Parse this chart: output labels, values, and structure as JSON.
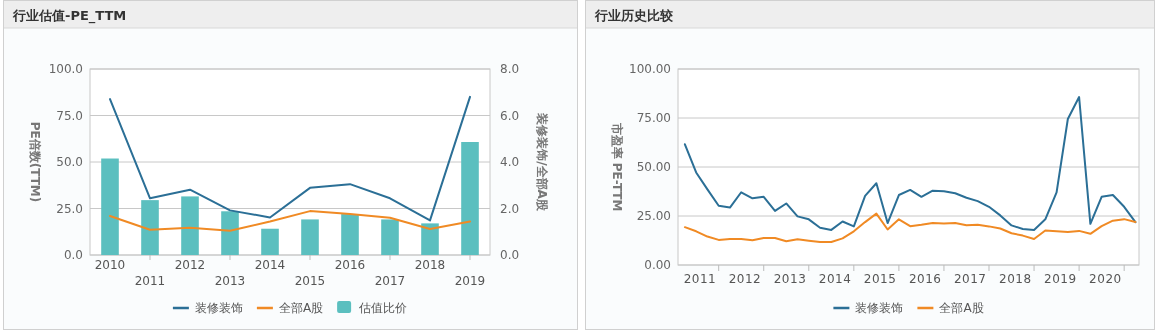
{
  "chart_data": [
    {
      "type": "bar",
      "title": "行业估值-PE_TTM",
      "ylabel": "PE倍数(TTM)",
      "y2label": "装修装饰/全部A股",
      "categories": [
        "2010",
        "2011",
        "2012",
        "2013",
        "2014",
        "2015",
        "2016",
        "2017",
        "2018",
        "2019"
      ],
      "series": [
        {
          "name": "装修装饰",
          "type": "line",
          "color": "#2b6f96",
          "values": [
            83.8,
            30.5,
            35.1,
            24.0,
            20.2,
            36.1,
            38.1,
            30.5,
            18.6,
            85.0
          ]
        },
        {
          "name": "全部A股",
          "type": "line",
          "color": "#f08a24",
          "values": [
            21.0,
            13.6,
            14.6,
            13.0,
            18.0,
            23.6,
            22.0,
            20.0,
            14.0,
            18.0
          ]
        },
        {
          "name": "估值比价",
          "axis": "y2",
          "color": "#5bbfbf",
          "values": [
            4.15,
            2.36,
            2.52,
            1.88,
            1.13,
            1.53,
            1.76,
            1.53,
            1.36,
            4.86
          ]
        }
      ],
      "ylim": [
        0,
        100
      ],
      "yticks": [
        {
          "value": 0,
          "label": "0.0"
        },
        {
          "value": 25,
          "label": "25.0"
        },
        {
          "value": 50,
          "label": "50.0"
        },
        {
          "value": 75,
          "label": "75.0"
        },
        {
          "value": 100,
          "label": "100.0"
        }
      ],
      "y2lim": [
        0,
        8
      ],
      "y2ticks": [
        {
          "value": 0,
          "label": "0.0"
        },
        {
          "value": 2,
          "label": "2.0"
        },
        {
          "value": 4,
          "label": "4.0"
        },
        {
          "value": 6,
          "label": "6.0"
        },
        {
          "value": 8,
          "label": "8.0"
        }
      ],
      "grid": "y",
      "legend": "bottom"
    },
    {
      "type": "line",
      "title": "行业历史比较",
      "ylabel": "市盈率 PE-TTM",
      "x": [
        "2011-04",
        "2011-07",
        "2011-10",
        "2012-01",
        "2012-04",
        "2012-07",
        "2012-10",
        "2013-01",
        "2013-04",
        "2013-07",
        "2013-10",
        "2014-01",
        "2014-04",
        "2014-07",
        "2014-10",
        "2015-01",
        "2015-04",
        "2015-07",
        "2015-10",
        "2016-01",
        "2016-04",
        "2016-07",
        "2016-10",
        "2017-01",
        "2017-04",
        "2017-07",
        "2017-10",
        "2018-01",
        "2018-04",
        "2018-07",
        "2018-10",
        "2019-01",
        "2019-04",
        "2019-07",
        "2019-10",
        "2020-01",
        "2020-04",
        "2020-07",
        "2020-10",
        "2021-01",
        "2021-04"
      ],
      "series": [
        {
          "name": "装修装饰",
          "color": "#2b6f96",
          "values": [
            61.6,
            47.2,
            38.6,
            30.2,
            29.3,
            37.1,
            34.0,
            34.8,
            27.6,
            31.4,
            24.8,
            23.3,
            19.0,
            17.9,
            22.2,
            19.7,
            35.3,
            41.7,
            21.4,
            35.7,
            38.3,
            34.8,
            37.9,
            37.6,
            36.6,
            34.3,
            32.6,
            29.7,
            25.3,
            20.2,
            18.4,
            17.9,
            23.3,
            37.1,
            74.5,
            85.7,
            21.0,
            34.8,
            35.7,
            29.7,
            21.9
          ]
        },
        {
          "name": "全部A股",
          "color": "#f08a24",
          "values": [
            19.3,
            17.2,
            14.5,
            12.8,
            13.3,
            13.3,
            12.6,
            13.8,
            13.8,
            12.1,
            13.1,
            12.4,
            11.7,
            11.7,
            13.6,
            17.2,
            21.9,
            26.2,
            18.1,
            23.3,
            19.8,
            20.5,
            21.4,
            21.2,
            21.4,
            20.3,
            20.5,
            19.7,
            18.6,
            16.2,
            15.0,
            13.3,
            17.6,
            17.2,
            16.9,
            17.4,
            15.9,
            19.8,
            22.6,
            23.4,
            21.9
          ]
        }
      ],
      "xlim": [
        "2011-02-06",
        "2021-04-30"
      ],
      "xticks": [
        {
          "value": "2011-08",
          "label": "2011"
        },
        {
          "value": "2012-01",
          "label": null
        },
        {
          "value": "2012-08",
          "label": "2012"
        },
        {
          "value": "2013-01",
          "label": null
        },
        {
          "value": "2013-08",
          "label": "2013"
        },
        {
          "value": "2014-01",
          "label": null
        },
        {
          "value": "2014-08",
          "label": "2014"
        },
        {
          "value": "2015-01",
          "label": null
        },
        {
          "value": "2015-08",
          "label": "2015"
        },
        {
          "value": "2016-01",
          "label": null
        },
        {
          "value": "2016-08",
          "label": "2016"
        },
        {
          "value": "2017-01",
          "label": null
        },
        {
          "value": "2017-08",
          "label": "2017"
        },
        {
          "value": "2018-01",
          "label": null
        },
        {
          "value": "2018-08",
          "label": "2018"
        },
        {
          "value": "2019-01",
          "label": null
        },
        {
          "value": "2019-08",
          "label": "2019"
        },
        {
          "value": "2020-01",
          "label": null
        },
        {
          "value": "2020-08",
          "label": "2020"
        },
        {
          "value": "2021-01",
          "label": null
        }
      ],
      "ylim": [
        0,
        100
      ],
      "yticks": [
        {
          "value": 0,
          "label": "0.00"
        },
        {
          "value": 25,
          "label": "25.00"
        },
        {
          "value": 50,
          "label": "50.00"
        },
        {
          "value": 75,
          "label": "75.00"
        },
        {
          "value": 100,
          "label": "100.00"
        }
      ],
      "grid": "y",
      "legend": "bottom"
    }
  ]
}
